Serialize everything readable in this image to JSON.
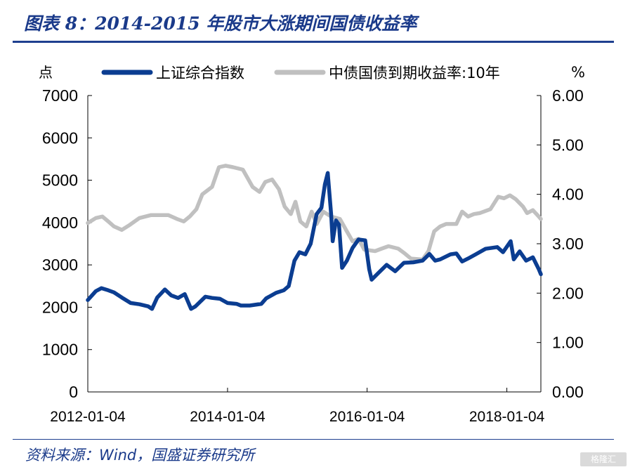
{
  "title": "图表 8：2014-2015 年股市大涨期间国债收益率",
  "source": "资料来源：Wind，国盛证券研究所",
  "watermark": "格隆汇",
  "colors": {
    "title": "#1a3a8a",
    "index": "#0b3d91",
    "yield": "#c0c0c0"
  },
  "chart_data": {
    "type": "line",
    "y_left_unit": "点",
    "y_right_unit": "%",
    "y_left_ticks": [
      "0",
      "1000",
      "2000",
      "3000",
      "4000",
      "5000",
      "6000",
      "7000"
    ],
    "y_right_ticks": [
      "0.00",
      "1.00",
      "2.00",
      "3.00",
      "4.00",
      "5.00",
      "6.00"
    ],
    "x_ticks": [
      "2012-01-04",
      "2014-01-04",
      "2016-01-04",
      "2018-01-04"
    ],
    "y_left_range": [
      0,
      7000
    ],
    "y_right_range": [
      0,
      6
    ],
    "x_range": [
      "2012-01-04",
      "2018-07-01"
    ],
    "legend_position": "top",
    "grid": false,
    "series": [
      {
        "name": "上证综合指数",
        "axis": "left",
        "points": [
          [
            "2012-01-04",
            2170
          ],
          [
            "2012-02-15",
            2380
          ],
          [
            "2012-03-15",
            2450
          ],
          [
            "2012-04-20",
            2400
          ],
          [
            "2012-05-20",
            2350
          ],
          [
            "2012-06-30",
            2230
          ],
          [
            "2012-08-15",
            2100
          ],
          [
            "2012-09-30",
            2070
          ],
          [
            "2012-11-15",
            2020
          ],
          [
            "2012-12-05",
            1960
          ],
          [
            "2013-01-01",
            2230
          ],
          [
            "2013-02-10",
            2420
          ],
          [
            "2013-03-15",
            2280
          ],
          [
            "2013-04-20",
            2220
          ],
          [
            "2013-05-25",
            2310
          ],
          [
            "2013-06-27",
            1960
          ],
          [
            "2013-07-20",
            2020
          ],
          [
            "2013-09-10",
            2250
          ],
          [
            "2013-10-15",
            2220
          ],
          [
            "2013-11-25",
            2200
          ],
          [
            "2014-01-04",
            2100
          ],
          [
            "2014-02-20",
            2080
          ],
          [
            "2014-03-15",
            2040
          ],
          [
            "2014-04-30",
            2040
          ],
          [
            "2014-06-30",
            2080
          ],
          [
            "2014-07-25",
            2210
          ],
          [
            "2014-09-15",
            2340
          ],
          [
            "2014-10-25",
            2400
          ],
          [
            "2014-11-20",
            2500
          ],
          [
            "2014-12-20",
            3100
          ],
          [
            "2015-01-15",
            3300
          ],
          [
            "2015-02-15",
            3250
          ],
          [
            "2015-03-15",
            3500
          ],
          [
            "2015-04-15",
            4200
          ],
          [
            "2015-05-10",
            4350
          ],
          [
            "2015-05-28",
            4900
          ],
          [
            "2015-06-12",
            5170
          ],
          [
            "2015-06-30",
            4200
          ],
          [
            "2015-07-08",
            3560
          ],
          [
            "2015-07-25",
            4050
          ],
          [
            "2015-08-10",
            3950
          ],
          [
            "2015-08-26",
            2930
          ],
          [
            "2015-09-20",
            3100
          ],
          [
            "2015-10-20",
            3400
          ],
          [
            "2015-11-20",
            3600
          ],
          [
            "2015-12-25",
            3580
          ],
          [
            "2016-01-15",
            2900
          ],
          [
            "2016-01-28",
            2650
          ],
          [
            "2016-03-01",
            2800
          ],
          [
            "2016-04-15",
            3000
          ],
          [
            "2016-05-30",
            2850
          ],
          [
            "2016-07-15",
            3050
          ],
          [
            "2016-09-01",
            3060
          ],
          [
            "2016-10-20",
            3100
          ],
          [
            "2016-11-25",
            3260
          ],
          [
            "2016-12-25",
            3100
          ],
          [
            "2017-01-20",
            3130
          ],
          [
            "2017-03-15",
            3250
          ],
          [
            "2017-04-15",
            3270
          ],
          [
            "2017-05-15",
            3080
          ],
          [
            "2017-06-15",
            3150
          ],
          [
            "2017-07-25",
            3250
          ],
          [
            "2017-09-15",
            3380
          ],
          [
            "2017-11-15",
            3420
          ],
          [
            "2017-12-15",
            3300
          ],
          [
            "2018-01-24",
            3560
          ],
          [
            "2018-02-09",
            3130
          ],
          [
            "2018-03-12",
            3320
          ],
          [
            "2018-04-15",
            3100
          ],
          [
            "2018-05-20",
            3180
          ],
          [
            "2018-06-20",
            2900
          ],
          [
            "2018-07-01",
            2780
          ]
        ]
      },
      {
        "name": "中债国债到期收益率:10年",
        "axis": "right",
        "points": [
          [
            "2012-01-04",
            3.42
          ],
          [
            "2012-02-15",
            3.52
          ],
          [
            "2012-03-20",
            3.55
          ],
          [
            "2012-04-20",
            3.45
          ],
          [
            "2012-05-20",
            3.35
          ],
          [
            "2012-06-30",
            3.28
          ],
          [
            "2012-08-10",
            3.38
          ],
          [
            "2012-09-30",
            3.52
          ],
          [
            "2012-11-30",
            3.58
          ],
          [
            "2013-01-15",
            3.58
          ],
          [
            "2013-02-28",
            3.58
          ],
          [
            "2013-04-15",
            3.5
          ],
          [
            "2013-05-20",
            3.45
          ],
          [
            "2013-06-20",
            3.55
          ],
          [
            "2013-07-25",
            3.7
          ],
          [
            "2013-08-25",
            4.0
          ],
          [
            "2013-10-15",
            4.15
          ],
          [
            "2013-11-20",
            4.55
          ],
          [
            "2013-12-25",
            4.58
          ],
          [
            "2014-02-01",
            4.55
          ],
          [
            "2014-03-25",
            4.5
          ],
          [
            "2014-05-15",
            4.15
          ],
          [
            "2014-06-20",
            4.05
          ],
          [
            "2014-07-20",
            4.25
          ],
          [
            "2014-08-25",
            4.3
          ],
          [
            "2014-09-30",
            4.1
          ],
          [
            "2014-10-30",
            3.75
          ],
          [
            "2014-12-01",
            3.6
          ],
          [
            "2014-12-25",
            3.85
          ],
          [
            "2015-01-20",
            3.45
          ],
          [
            "2015-02-20",
            3.35
          ],
          [
            "2015-03-20",
            3.65
          ],
          [
            "2015-04-15",
            3.4
          ],
          [
            "2015-05-20",
            3.65
          ],
          [
            "2015-06-30",
            3.55
          ],
          [
            "2015-08-15",
            3.5
          ],
          [
            "2015-09-20",
            3.25
          ],
          [
            "2015-10-20",
            3.05
          ],
          [
            "2015-11-20",
            3.1
          ],
          [
            "2015-12-20",
            2.88
          ],
          [
            "2016-02-15",
            2.85
          ],
          [
            "2016-03-20",
            2.9
          ],
          [
            "2016-04-25",
            2.95
          ],
          [
            "2016-06-15",
            2.9
          ],
          [
            "2016-07-20",
            2.8
          ],
          [
            "2016-08-20",
            2.7
          ],
          [
            "2016-10-20",
            2.68
          ],
          [
            "2016-11-20",
            2.85
          ],
          [
            "2016-12-20",
            3.25
          ],
          [
            "2017-01-20",
            3.35
          ],
          [
            "2017-02-20",
            3.4
          ],
          [
            "2017-04-15",
            3.4
          ],
          [
            "2017-05-15",
            3.65
          ],
          [
            "2017-06-15",
            3.55
          ],
          [
            "2017-07-15",
            3.6
          ],
          [
            "2017-08-15",
            3.62
          ],
          [
            "2017-10-10",
            3.7
          ],
          [
            "2017-11-20",
            3.95
          ],
          [
            "2017-12-20",
            3.92
          ],
          [
            "2018-01-20",
            3.98
          ],
          [
            "2018-02-20",
            3.9
          ],
          [
            "2018-03-30",
            3.75
          ],
          [
            "2018-04-20",
            3.62
          ],
          [
            "2018-05-20",
            3.68
          ],
          [
            "2018-06-20",
            3.55
          ],
          [
            "2018-07-01",
            3.5
          ]
        ]
      }
    ]
  }
}
